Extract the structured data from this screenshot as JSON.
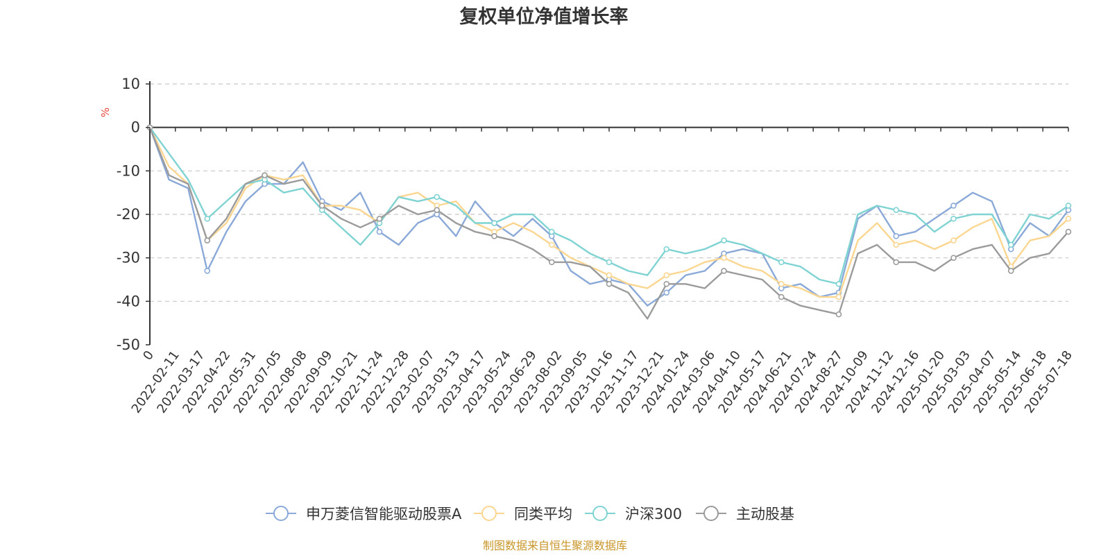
{
  "colors": {
    "series": [
      "#8aa9d8",
      "#fbd690",
      "#7fd3d3",
      "#9b9b9b"
    ],
    "unit": "#e8463a",
    "source": "#c8962a",
    "axis": "#333333",
    "grid": "#c8c8c8"
  },
  "source_text": "制图数据来自恒生聚源数据库",
  "chart_data": {
    "type": "line",
    "title": "复权单位净值增长率",
    "ylabel": "%",
    "xlabel": "",
    "ylim": [
      -50,
      10
    ],
    "yticks": [
      10,
      0,
      -10,
      -20,
      -30,
      -40,
      -50
    ],
    "grid": true,
    "legend_position": "bottom-center",
    "x_tick_labels": [
      "0",
      "2022-02-11",
      "2022-03-17",
      "2022-04-22",
      "2022-05-31",
      "2022-07-05",
      "2022-08-08",
      "2022-09-09",
      "2022-10-21",
      "2022-11-24",
      "2022-12-28",
      "2023-02-07",
      "2023-03-13",
      "2023-04-17",
      "2023-05-24",
      "2023-06-29",
      "2023-08-02",
      "2023-09-05",
      "2023-10-16",
      "2023-11-17",
      "2023-12-21",
      "2024-01-24",
      "2024-03-06",
      "2024-04-10",
      "2024-05-17",
      "2024-06-21",
      "2024-07-24",
      "2024-08-27",
      "2024-10-09",
      "2024-11-12",
      "2024-12-16",
      "2025-01-20",
      "2025-03-03",
      "2025-04-07",
      "2025-05-14",
      "2025-06-18",
      "2025-07-18"
    ],
    "series": [
      {
        "name": "申万菱信智能驱动股票A",
        "values": [
          0,
          -12,
          -14,
          -33,
          -24,
          -17,
          -13,
          -13,
          -8,
          -17,
          -19,
          -15,
          -24,
          -27,
          -22,
          -20,
          -25,
          -17,
          -22,
          -25,
          -21,
          -25,
          -33,
          -36,
          -35,
          -36,
          -41,
          -38,
          -34,
          -33,
          -29,
          -28,
          -29,
          -37,
          -36,
          -39,
          -38,
          -21,
          -18,
          -25,
          -24,
          -21,
          -18,
          -15,
          -17,
          -28,
          -22,
          -25,
          -19
        ]
      },
      {
        "name": "同类平均",
        "values": [
          0,
          -9,
          -13,
          -26,
          -22,
          -14,
          -11,
          -12,
          -11,
          -18,
          -18,
          -19,
          -22,
          -16,
          -15,
          -18,
          -17,
          -22,
          -24,
          -22,
          -24,
          -27,
          -30,
          -32,
          -34,
          -36,
          -37,
          -34,
          -33,
          -31,
          -30,
          -32,
          -33,
          -36,
          -37,
          -39,
          -39,
          -26,
          -22,
          -27,
          -26,
          -28,
          -26,
          -23,
          -21,
          -32,
          -26,
          -25,
          -21
        ]
      },
      {
        "name": "沪深300",
        "values": [
          0,
          -6,
          -12,
          -21,
          -17,
          -13,
          -12,
          -15,
          -14,
          -19,
          -23,
          -27,
          -22,
          -16,
          -17,
          -16,
          -18,
          -22,
          -22,
          -20,
          -20,
          -24,
          -26,
          -29,
          -31,
          -33,
          -34,
          -28,
          -29,
          -28,
          -26,
          -27,
          -29,
          -31,
          -32,
          -35,
          -36,
          -20,
          -18,
          -19,
          -20,
          -24,
          -21,
          -20,
          -20,
          -27,
          -20,
          -21,
          -18
        ]
      },
      {
        "name": "主动股基",
        "values": [
          0,
          -11,
          -13,
          -26,
          -21,
          -13,
          -11,
          -13,
          -12,
          -18,
          -21,
          -23,
          -21,
          -18,
          -20,
          -19,
          -22,
          -24,
          -25,
          -26,
          -28,
          -31,
          -31,
          -32,
          -36,
          -38,
          -44,
          -36,
          -36,
          -37,
          -33,
          -34,
          -35,
          -39,
          -41,
          -42,
          -43,
          -29,
          -27,
          -31,
          -31,
          -33,
          -30,
          -28,
          -27,
          -33,
          -30,
          -29,
          -24
        ]
      }
    ]
  }
}
